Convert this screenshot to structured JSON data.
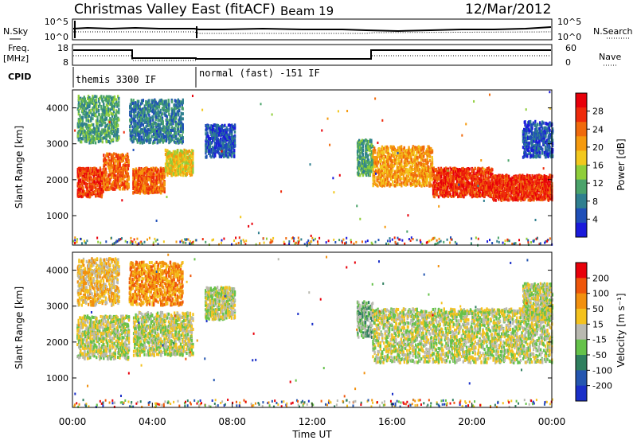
{
  "header": {
    "station": "Christmas Valley East (fitACF)",
    "beam": "Beam 19",
    "date": "12/Mar/2012"
  },
  "panels": {
    "nsky_label": "N.Sky",
    "nsearch_label": "N.Search",
    "nsky_ticks": [
      "10^5",
      "10^0"
    ],
    "freq_label": "Freq.",
    "freq_unit": "[MHz]",
    "freq_ticks": [
      "18",
      "8"
    ],
    "nave_label": "Nave",
    "nave_ticks": [
      "60",
      "0"
    ],
    "cpid_label": "CPID",
    "cpid_segments": [
      "themis 3300 IF",
      "normal (fast) -151 IF"
    ]
  },
  "colors": {
    "power_scale": [
      "#1a1adb",
      "#1f4fb8",
      "#2f7f8f",
      "#4aa36a",
      "#8fce3a",
      "#f2c81e",
      "#f59a0e",
      "#f06a0c",
      "#ee2a0a",
      "#e8000a"
    ],
    "velocity_scale": [
      "#1a2fc8",
      "#2456b0",
      "#2f7f5f",
      "#65c24a",
      "#b9b9b0",
      "#f4c21e",
      "#f2900e",
      "#ee560a",
      "#e8000a"
    ]
  },
  "chart_data": [
    {
      "type": "heatmap",
      "name": "power",
      "ylabel": "Slant Range [km]",
      "yticks": [
        "4000",
        "3000",
        "2000",
        "1000"
      ],
      "ylim": [
        180,
        4500
      ],
      "colorbar_label": "Power [dB]",
      "colorbar_ticks": [
        "28",
        "24",
        "20",
        "16",
        "12",
        "8",
        "4"
      ],
      "bands": [
        {
          "t": [
            0.2,
            1.5
          ],
          "r": [
            1500,
            2300
          ],
          "level": 8
        },
        {
          "t": [
            1.5,
            2.8
          ],
          "r": [
            1700,
            2700
          ],
          "level": 7
        },
        {
          "t": [
            3.0,
            4.6
          ],
          "r": [
            1600,
            2300
          ],
          "level": 7
        },
        {
          "t": [
            4.6,
            6.0
          ],
          "r": [
            2100,
            2800
          ],
          "level": 5
        },
        {
          "t": [
            0.2,
            2.3
          ],
          "r": [
            3000,
            4300
          ],
          "level": 3
        },
        {
          "t": [
            2.8,
            5.5
          ],
          "r": [
            3000,
            4200
          ],
          "level": 2
        },
        {
          "t": [
            6.6,
            8.1
          ],
          "r": [
            2600,
            3500
          ],
          "level": 1
        },
        {
          "t": [
            14.2,
            15.0
          ],
          "r": [
            2100,
            3100
          ],
          "level": 3
        },
        {
          "t": [
            15.0,
            18.0
          ],
          "r": [
            1800,
            2900
          ],
          "level": 6
        },
        {
          "t": [
            18.0,
            21.0
          ],
          "r": [
            1500,
            2300
          ],
          "level": 8
        },
        {
          "t": [
            21.0,
            24.0
          ],
          "r": [
            1400,
            2100
          ],
          "level": 8
        },
        {
          "t": [
            22.5,
            24.0
          ],
          "r": [
            2600,
            3600
          ],
          "level": 1
        }
      ]
    },
    {
      "type": "heatmap",
      "name": "velocity",
      "ylabel": "Slant Range [km]",
      "xlabel": "Time UT",
      "xticks": [
        "00:00",
        "04:00",
        "08:00",
        "12:00",
        "16:00",
        "20:00",
        "00:00"
      ],
      "yticks": [
        "4000",
        "3000",
        "2000",
        "1000"
      ],
      "ylim": [
        180,
        4500
      ],
      "colorbar_label": "Velocity [m s⁻¹]",
      "colorbar_ticks": [
        "200",
        "100",
        "50",
        "15",
        "-15",
        "-50",
        "-100",
        "-200"
      ],
      "bands": [
        {
          "t": [
            0.2,
            2.8
          ],
          "r": [
            1500,
            2700
          ],
          "level": 4
        },
        {
          "t": [
            3.0,
            6.0
          ],
          "r": [
            1600,
            2800
          ],
          "level": 4
        },
        {
          "t": [
            0.2,
            2.3
          ],
          "r": [
            3000,
            4300
          ],
          "level": 5
        },
        {
          "t": [
            2.8,
            5.5
          ],
          "r": [
            3000,
            4200
          ],
          "level": 6
        },
        {
          "t": [
            6.6,
            8.1
          ],
          "r": [
            2600,
            3500
          ],
          "level": 4
        },
        {
          "t": [
            14.2,
            15.0
          ],
          "r": [
            2100,
            3100
          ],
          "level": 3
        },
        {
          "t": [
            15.0,
            24.0
          ],
          "r": [
            1400,
            2900
          ],
          "level": 4
        },
        {
          "t": [
            22.5,
            24.0
          ],
          "r": [
            2600,
            3600
          ],
          "level": 4
        }
      ]
    }
  ]
}
